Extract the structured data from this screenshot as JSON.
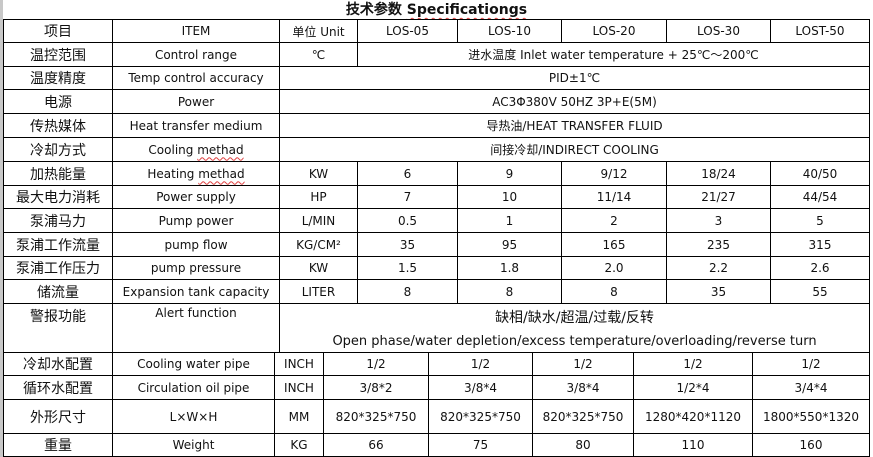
{
  "title": {
    "zh": "技术参数",
    "en": "Specificationgs"
  },
  "header": [
    "项目",
    "ITEM",
    "单位 Unit",
    "LOS-05",
    "LOS-10",
    "LOS-20",
    "LOS-30",
    "LOST-50"
  ],
  "rows": [
    {
      "zh": "温控范围",
      "en": "Control range",
      "unit": "℃",
      "merged": "进水温度 Inlet water temperature + 25℃～200℃"
    },
    {
      "zh": "温度精度",
      "en": "Temp control accuracy",
      "merged": "PID±1℃"
    },
    {
      "zh": "电源",
      "en": "Power",
      "merged": "AC3Φ380V 50HZ 3P+E(5M)"
    },
    {
      "zh": "传热媒体",
      "en": "Heat transfer medium",
      "merged": "导热油/HEAT TRANSFER FLUID"
    },
    {
      "zh": "冷却方式",
      "en": "Cooling methad",
      "merged": "间接冷却/INDIRECT COOLING"
    },
    {
      "zh": "加热能量",
      "en": "Heating methad",
      "unit": "KW",
      "values": [
        "6",
        "9",
        "9/12",
        "18/24",
        "40/50"
      ]
    },
    {
      "zh": "最大电力消耗",
      "en": "Power supply",
      "unit": "HP",
      "values": [
        "7",
        "10",
        "11/14",
        "21/27",
        "44/54"
      ]
    },
    {
      "zh": "泵浦马力",
      "en": "Pump power",
      "unit": "L/MIN",
      "values": [
        "0.5",
        "1",
        "2",
        "3",
        "5"
      ]
    },
    {
      "zh": "泵浦工作流量",
      "en": "pump flow",
      "unit": "KG/CM²",
      "values": [
        "35",
        "95",
        "165",
        "235",
        "315"
      ]
    },
    {
      "zh": "泵浦工作压力",
      "en": "pump pressure",
      "unit": "KW",
      "values": [
        "1.5",
        "1.8",
        "2.0",
        "2.2",
        "2.6"
      ]
    },
    {
      "zh": "储流量",
      "en": "Expansion tank capacity",
      "unit": "LITER",
      "values": [
        "8",
        "8",
        "8",
        "35",
        "55"
      ]
    },
    {
      "zh": "警报功能",
      "en": "Alert function",
      "merged_zh": "缺相/缺水/超温/过载/反转",
      "merged_en": "Open phase/water depletion/excess temperature/overloading/reverse turn"
    },
    {
      "zh": "冷却水配置",
      "en": "Cooling water pipe",
      "unit": "INCH",
      "values": [
        "1/2",
        "1/2",
        "1/2",
        "1/2",
        "1/2"
      ]
    },
    {
      "zh": "循环水配置",
      "en": "Circulation oil pipe",
      "unit": "INCH",
      "values": [
        "3/8*2",
        "3/8*4",
        "3/8*4",
        "1/2*4",
        "3/4*4"
      ]
    },
    {
      "zh": "外形尺寸",
      "en": "L×W×H",
      "unit": "MM",
      "values": [
        "820*325*750",
        "820*325*750",
        "820*325*750",
        "1280*420*1120",
        "1800*550*1320"
      ]
    },
    {
      "zh": "重量",
      "en": "Weight",
      "unit": "KG",
      "values": [
        "66",
        "75",
        "80",
        "110",
        "160"
      ]
    }
  ]
}
